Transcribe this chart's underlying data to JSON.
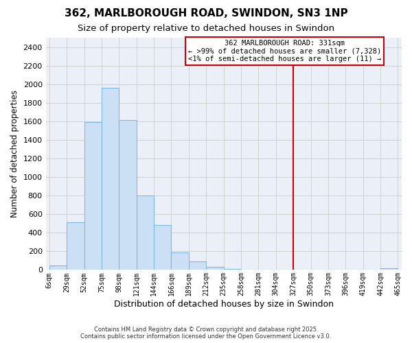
{
  "title": "362, MARLBOROUGH ROAD, SWINDON, SN3 1NP",
  "subtitle": "Size of property relative to detached houses in Swindon",
  "xlabel": "Distribution of detached houses by size in Swindon",
  "ylabel": "Number of detached properties",
  "bin_labels": [
    "6sqm",
    "29sqm",
    "52sqm",
    "75sqm",
    "98sqm",
    "121sqm",
    "144sqm",
    "166sqm",
    "189sqm",
    "212sqm",
    "235sqm",
    "258sqm",
    "281sqm",
    "304sqm",
    "327sqm",
    "350sqm",
    "373sqm",
    "396sqm",
    "419sqm",
    "442sqm",
    "465sqm"
  ],
  "bar_heights": [
    50,
    510,
    1590,
    1960,
    1610,
    800,
    480,
    190,
    90,
    35,
    10,
    0,
    0,
    0,
    0,
    0,
    0,
    0,
    0,
    15,
    0
  ],
  "bar_color": "#cce0f5",
  "bar_edge_color": "#7fb8e0",
  "vline_color": "#cc0000",
  "ylim": [
    0,
    2500
  ],
  "yticks": [
    0,
    200,
    400,
    600,
    800,
    1000,
    1200,
    1400,
    1600,
    1800,
    2000,
    2200,
    2400
  ],
  "grid_color": "#cccccc",
  "bg_color": "#eaeff8",
  "annotation_title": "362 MARLBOROUGH ROAD: 331sqm",
  "annotation_line1": "← >99% of detached houses are smaller (7,328)",
  "annotation_line2": "<1% of semi-detached houses are larger (11) →",
  "annotation_box_color": "#ffffff",
  "annotation_border_color": "#cc0000",
  "footer1": "Contains HM Land Registry data © Crown copyright and database right 2025.",
  "footer2": "Contains public sector information licensed under the Open Government Licence v3.0.",
  "title_fontsize": 11,
  "subtitle_fontsize": 9.5,
  "xlabel_fontsize": 9,
  "ylabel_fontsize": 8.5
}
